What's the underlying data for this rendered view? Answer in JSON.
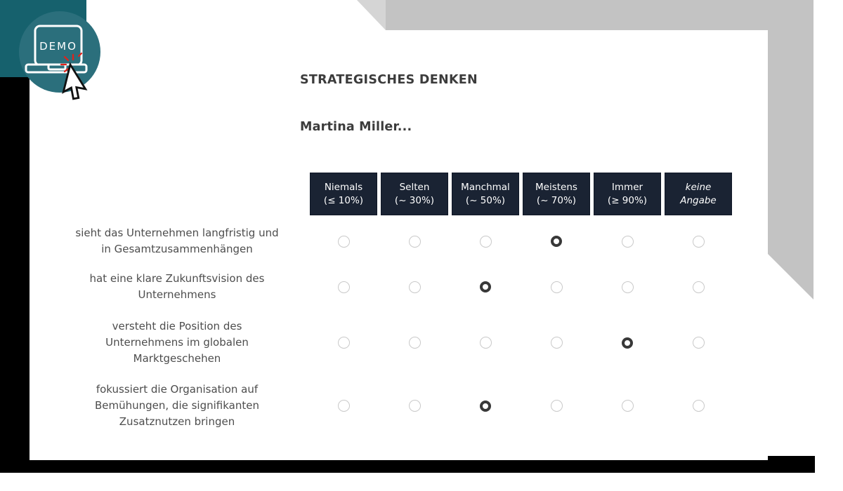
{
  "demo_badge": {
    "label": "DEMO"
  },
  "header": {
    "title": "STRATEGISCHES DENKEN",
    "subject": "Martina Miller..."
  },
  "matrix": {
    "columns": [
      {
        "line1": "Niemals",
        "line2": "(≤ 10%)",
        "italic": false
      },
      {
        "line1": "Selten",
        "line2": "(~ 30%)",
        "italic": false
      },
      {
        "line1": "Manchmal",
        "line2": "(~ 50%)",
        "italic": false
      },
      {
        "line1": "Meistens",
        "line2": "(~ 70%)",
        "italic": false
      },
      {
        "line1": "Immer",
        "line2": "(≥ 90%)",
        "italic": false
      },
      {
        "line1": "keine",
        "line2": "Angabe",
        "italic": true
      }
    ],
    "rows": [
      {
        "label_lines": [
          "sieht das Unternehmen langfristig und",
          "in Gesamtzusammenhängen"
        ],
        "selected": 3
      },
      {
        "label_lines": [
          "hat eine klare Zukunftsvision des",
          "Unternehmens"
        ],
        "selected": 2
      },
      {
        "label_lines": [
          "versteht die Position des",
          "Unternehmens im globalen",
          "Marktgeschehen"
        ],
        "selected": 4
      },
      {
        "label_lines": [
          "fokussiert die Organisation auf",
          "Bemühungen, die signifikanten",
          "Zusatznutzen bringen"
        ],
        "selected": 2
      }
    ]
  },
  "colors": {
    "header_bg": "#1a2333",
    "header_text": "#ffffff",
    "accent_teal": "#2b6f7c",
    "accent_teal_dark": "#16616d",
    "decor_gray": "#c3c3c3",
    "decor_gray_light": "#d5d5d5",
    "frame_black": "#000000",
    "radio_selected": "#383838",
    "radio_border": "#c9c9c9",
    "click_red": "#e32119"
  }
}
